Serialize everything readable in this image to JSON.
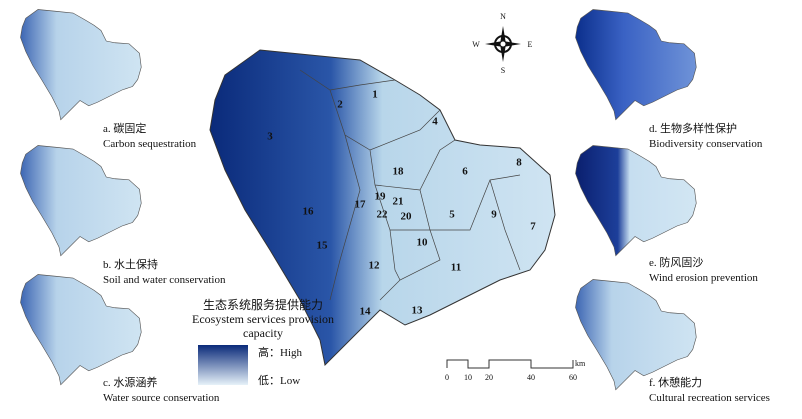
{
  "panels": [
    {
      "label_cn": "a. 碳固定",
      "label_en": "Carbon sequestration"
    },
    {
      "label_cn": "b. 水土保持",
      "label_en": "Soil and water conservation"
    },
    {
      "label_cn": "c. 水源涵养",
      "label_en": "Water source conservation"
    },
    {
      "label_cn": "d. 生物多样性保护",
      "label_en": "Biodiversity conservation"
    },
    {
      "label_cn": "e. 防风固沙",
      "label_en": "Wind erosion prevention"
    },
    {
      "label_cn": "f. 休憩能力",
      "label_en": "Cultural recreation services"
    }
  ],
  "main_map": {
    "regions": [
      "1",
      "2",
      "3",
      "4",
      "5",
      "6",
      "7",
      "8",
      "9",
      "10",
      "11",
      "12",
      "13",
      "14",
      "15",
      "16",
      "17",
      "18",
      "19",
      "20",
      "21",
      "22"
    ]
  },
  "legend": {
    "title_cn": "生态系统服务提供能力",
    "title_en": "Ecosystem services provision capacity",
    "high": "高：High",
    "low": "低：Low"
  },
  "scale_bar": {
    "ticks": [
      "0",
      "10",
      "20",
      "40",
      "60"
    ],
    "unit": "km"
  },
  "compass": {
    "n": "N",
    "s": "S",
    "e": "E",
    "w": "W"
  }
}
